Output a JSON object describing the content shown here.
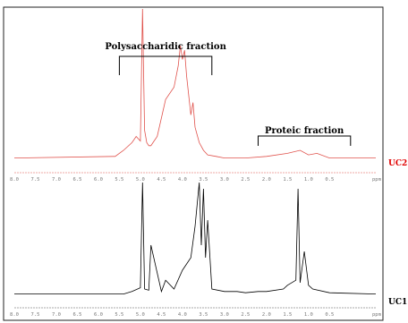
{
  "chart_data": [
    {
      "type": "line",
      "label": "UC2",
      "x_axis_unit": "ppm",
      "x_reversed": true,
      "xlim": [
        8.0,
        -0.6
      ],
      "tick_labels": [
        "8.0",
        "7.5",
        "7.0",
        "6.5",
        "6.0",
        "5.5",
        "5.0",
        "4.5",
        "4.0",
        "3.5",
        "3.0",
        "2.5",
        "2.0",
        "1.5",
        "1.0",
        "0.5"
      ],
      "annotations": [
        {
          "text": "Polysaccharidic fraction",
          "from": 5.5,
          "to": 3.3
        },
        {
          "text": "Proteic fraction",
          "from": 2.2,
          "to": 0.0
        }
      ],
      "color": "#e0524c",
      "x": [
        8.0,
        5.6,
        5.4,
        5.2,
        5.1,
        5.0,
        4.95,
        4.9,
        4.85,
        4.8,
        4.75,
        4.7,
        4.6,
        4.4,
        4.2,
        4.1,
        4.05,
        4.0,
        3.95,
        3.9,
        3.8,
        3.75,
        3.7,
        3.6,
        3.5,
        3.4,
        3.2,
        3.0,
        2.5,
        2.0,
        1.5,
        1.2,
        1.0,
        0.8,
        0.5,
        -0.6
      ],
      "y": [
        0.02,
        0.03,
        0.07,
        0.12,
        0.16,
        0.13,
        1.0,
        0.2,
        0.12,
        0.1,
        0.1,
        0.12,
        0.16,
        0.4,
        0.48,
        0.62,
        0.75,
        0.66,
        0.72,
        0.55,
        0.3,
        0.38,
        0.22,
        0.12,
        0.07,
        0.04,
        0.03,
        0.02,
        0.02,
        0.03,
        0.05,
        0.07,
        0.04,
        0.05,
        0.02,
        0.02
      ]
    },
    {
      "type": "line",
      "label": "UC1",
      "x_axis_unit": "ppm",
      "x_reversed": true,
      "xlim": [
        8.0,
        -0.6
      ],
      "tick_labels": [
        "8.0",
        "7.5",
        "7.0",
        "6.5",
        "6.0",
        "5.5",
        "5.0",
        "4.5",
        "4.0",
        "3.5",
        "3.0",
        "2.5",
        "2.0",
        "1.5",
        "1.0",
        "0.5"
      ],
      "color": "#000000",
      "x": [
        8.0,
        5.4,
        5.2,
        5.0,
        4.95,
        4.9,
        4.8,
        4.75,
        4.5,
        4.4,
        4.2,
        4.0,
        3.8,
        3.7,
        3.6,
        3.55,
        3.5,
        3.45,
        3.4,
        3.3,
        3.0,
        2.7,
        2.5,
        2.2,
        2.0,
        1.6,
        1.5,
        1.3,
        1.25,
        1.2,
        1.1,
        1.0,
        0.9,
        0.5,
        -0.6
      ],
      "y": [
        0.01,
        0.01,
        0.03,
        0.06,
        0.9,
        0.05,
        0.04,
        0.4,
        0.03,
        0.12,
        0.05,
        0.2,
        0.3,
        0.55,
        0.9,
        0.4,
        0.85,
        0.3,
        0.6,
        0.05,
        0.03,
        0.03,
        0.02,
        0.03,
        0.03,
        0.05,
        0.08,
        0.12,
        0.85,
        0.1,
        0.35,
        0.08,
        0.05,
        0.02,
        0.01
      ]
    }
  ]
}
